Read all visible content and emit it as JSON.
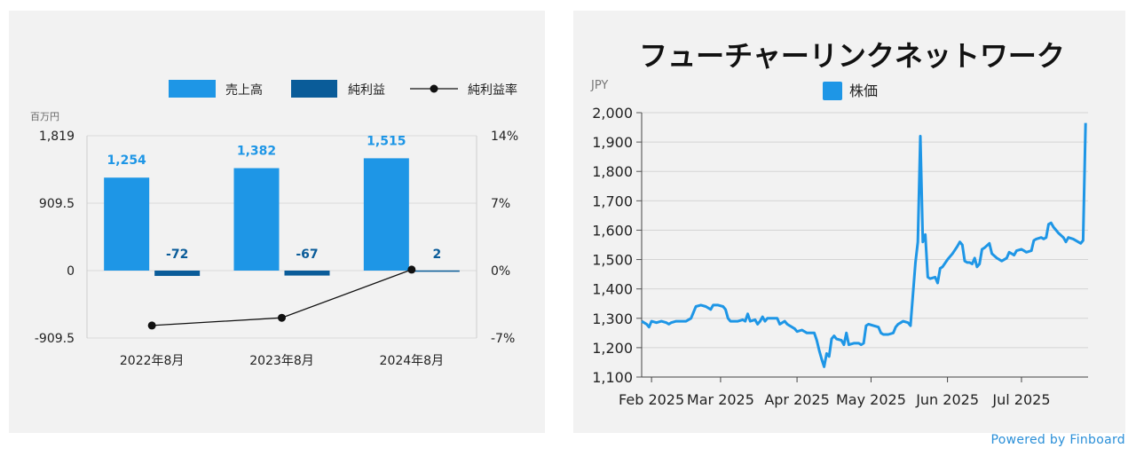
{
  "finance_chart": {
    "unit_label": "百万円",
    "legend": {
      "revenue": "売上高",
      "net_income": "純利益",
      "margin": "純利益率"
    },
    "colors": {
      "revenue": "#1e96e6",
      "net_income": "#0a5c99",
      "margin": "#111111",
      "grid": "#d9d9d9"
    },
    "chart_data": {
      "type": "bar",
      "categories": [
        "2022年8月",
        "2023年8月",
        "2024年8月"
      ],
      "series": [
        {
          "name": "売上高",
          "values": [
            1254,
            1382,
            1515
          ]
        },
        {
          "name": "純利益",
          "values": [
            -72,
            -67,
            2
          ]
        },
        {
          "name": "純利益率",
          "type": "line",
          "axis": "right",
          "values": [
            -5.7,
            -4.9,
            0.1
          ]
        }
      ],
      "data_labels": {
        "revenue": [
          "1,254",
          "1,382",
          "1,515"
        ],
        "net_income": [
          "-72",
          "-67",
          "2"
        ]
      },
      "ylim": [
        -909.5,
        1819
      ],
      "y_ticks": [
        "1,819",
        "909.5",
        "0",
        "-909.5"
      ],
      "y2lim": [
        -7,
        14
      ],
      "y2_ticks": [
        "14%",
        "7%",
        "0%",
        "-7%"
      ],
      "legend_position": "top-right"
    }
  },
  "stock_chart": {
    "title": "フューチャーリンクネットワーク",
    "unit_label": "JPY",
    "legend": {
      "price": "株価"
    },
    "colors": {
      "line": "#1e96e6",
      "grid": "#d4d4d4"
    },
    "chart_data": {
      "type": "line",
      "series_name": "株価",
      "ylim": [
        1100,
        2000
      ],
      "y_ticks": [
        "2,000",
        "1,900",
        "1,800",
        "1,700",
        "1,600",
        "1,500",
        "1,400",
        "1,300",
        "1,200",
        "1,100"
      ],
      "x_ticks": [
        "Feb 2025",
        "Mar 2025",
        "Apr 2025",
        "May 2025",
        "Jun 2025",
        "Jul 2025"
      ],
      "x_tick_days": [
        0,
        28,
        59,
        89,
        120,
        150
      ],
      "x_range_days": [
        -4,
        177
      ],
      "points": [
        [
          -4,
          1290
        ],
        [
          -2,
          1280
        ],
        [
          -1,
          1270
        ],
        [
          0,
          1290
        ],
        [
          2,
          1285
        ],
        [
          4,
          1290
        ],
        [
          6,
          1285
        ],
        [
          7,
          1280
        ],
        [
          8,
          1285
        ],
        [
          10,
          1290
        ],
        [
          12,
          1290
        ],
        [
          14,
          1290
        ],
        [
          16,
          1300
        ],
        [
          18,
          1340
        ],
        [
          20,
          1345
        ],
        [
          22,
          1340
        ],
        [
          24,
          1330
        ],
        [
          25,
          1345
        ],
        [
          27,
          1345
        ],
        [
          29,
          1340
        ],
        [
          30,
          1330
        ],
        [
          31,
          1300
        ],
        [
          32,
          1290
        ],
        [
          35,
          1290
        ],
        [
          37,
          1295
        ],
        [
          38,
          1290
        ],
        [
          39,
          1315
        ],
        [
          40,
          1290
        ],
        [
          42,
          1295
        ],
        [
          43,
          1280
        ],
        [
          44,
          1290
        ],
        [
          45,
          1305
        ],
        [
          46,
          1290
        ],
        [
          47,
          1300
        ],
        [
          49,
          1300
        ],
        [
          51,
          1300
        ],
        [
          52,
          1280
        ],
        [
          54,
          1290
        ],
        [
          55,
          1280
        ],
        [
          56,
          1275
        ],
        [
          58,
          1265
        ],
        [
          59,
          1255
        ],
        [
          61,
          1260
        ],
        [
          63,
          1250
        ],
        [
          65,
          1250
        ],
        [
          66,
          1250
        ],
        [
          67,
          1225
        ],
        [
          68,
          1190
        ],
        [
          69,
          1160
        ],
        [
          70,
          1135
        ],
        [
          71,
          1180
        ],
        [
          72,
          1170
        ],
        [
          73,
          1230
        ],
        [
          74,
          1240
        ],
        [
          75,
          1230
        ],
        [
          77,
          1225
        ],
        [
          78,
          1210
        ],
        [
          79,
          1250
        ],
        [
          80,
          1210
        ],
        [
          82,
          1215
        ],
        [
          84,
          1215
        ],
        [
          85,
          1210
        ],
        [
          86,
          1215
        ],
        [
          87,
          1275
        ],
        [
          88,
          1280
        ],
        [
          90,
          1275
        ],
        [
          92,
          1270
        ],
        [
          93,
          1250
        ],
        [
          94,
          1245
        ],
        [
          96,
          1245
        ],
        [
          98,
          1250
        ],
        [
          99,
          1270
        ],
        [
          100,
          1280
        ],
        [
          102,
          1290
        ],
        [
          104,
          1285
        ],
        [
          105,
          1275
        ],
        [
          107,
          1490
        ],
        [
          108,
          1560
        ],
        [
          109,
          1920
        ],
        [
          110,
          1560
        ],
        [
          111,
          1585
        ],
        [
          112,
          1440
        ],
        [
          113,
          1435
        ],
        [
          115,
          1440
        ],
        [
          116,
          1420
        ],
        [
          117,
          1470
        ],
        [
          118,
          1475
        ],
        [
          120,
          1500
        ],
        [
          122,
          1520
        ],
        [
          124,
          1545
        ],
        [
          125,
          1560
        ],
        [
          126,
          1550
        ],
        [
          127,
          1495
        ],
        [
          128,
          1490
        ],
        [
          129,
          1490
        ],
        [
          130,
          1485
        ],
        [
          131,
          1505
        ],
        [
          132,
          1475
        ],
        [
          133,
          1485
        ],
        [
          134,
          1535
        ],
        [
          135,
          1540
        ],
        [
          137,
          1555
        ],
        [
          138,
          1520
        ],
        [
          140,
          1505
        ],
        [
          142,
          1495
        ],
        [
          144,
          1505
        ],
        [
          145,
          1525
        ],
        [
          146,
          1520
        ],
        [
          147,
          1515
        ],
        [
          148,
          1530
        ],
        [
          150,
          1535
        ],
        [
          151,
          1530
        ],
        [
          152,
          1525
        ],
        [
          154,
          1530
        ],
        [
          155,
          1565
        ],
        [
          156,
          1570
        ],
        [
          158,
          1575
        ],
        [
          159,
          1570
        ],
        [
          160,
          1575
        ],
        [
          161,
          1620
        ],
        [
          162,
          1625
        ],
        [
          163,
          1610
        ],
        [
          164,
          1600
        ],
        [
          165,
          1590
        ],
        [
          167,
          1575
        ],
        [
          168,
          1560
        ],
        [
          169,
          1575
        ],
        [
          171,
          1570
        ],
        [
          173,
          1560
        ],
        [
          174,
          1555
        ],
        [
          175,
          1565
        ],
        [
          176,
          1965
        ]
      ]
    }
  },
  "footer": {
    "powered_by": "Powered by Finboard"
  }
}
